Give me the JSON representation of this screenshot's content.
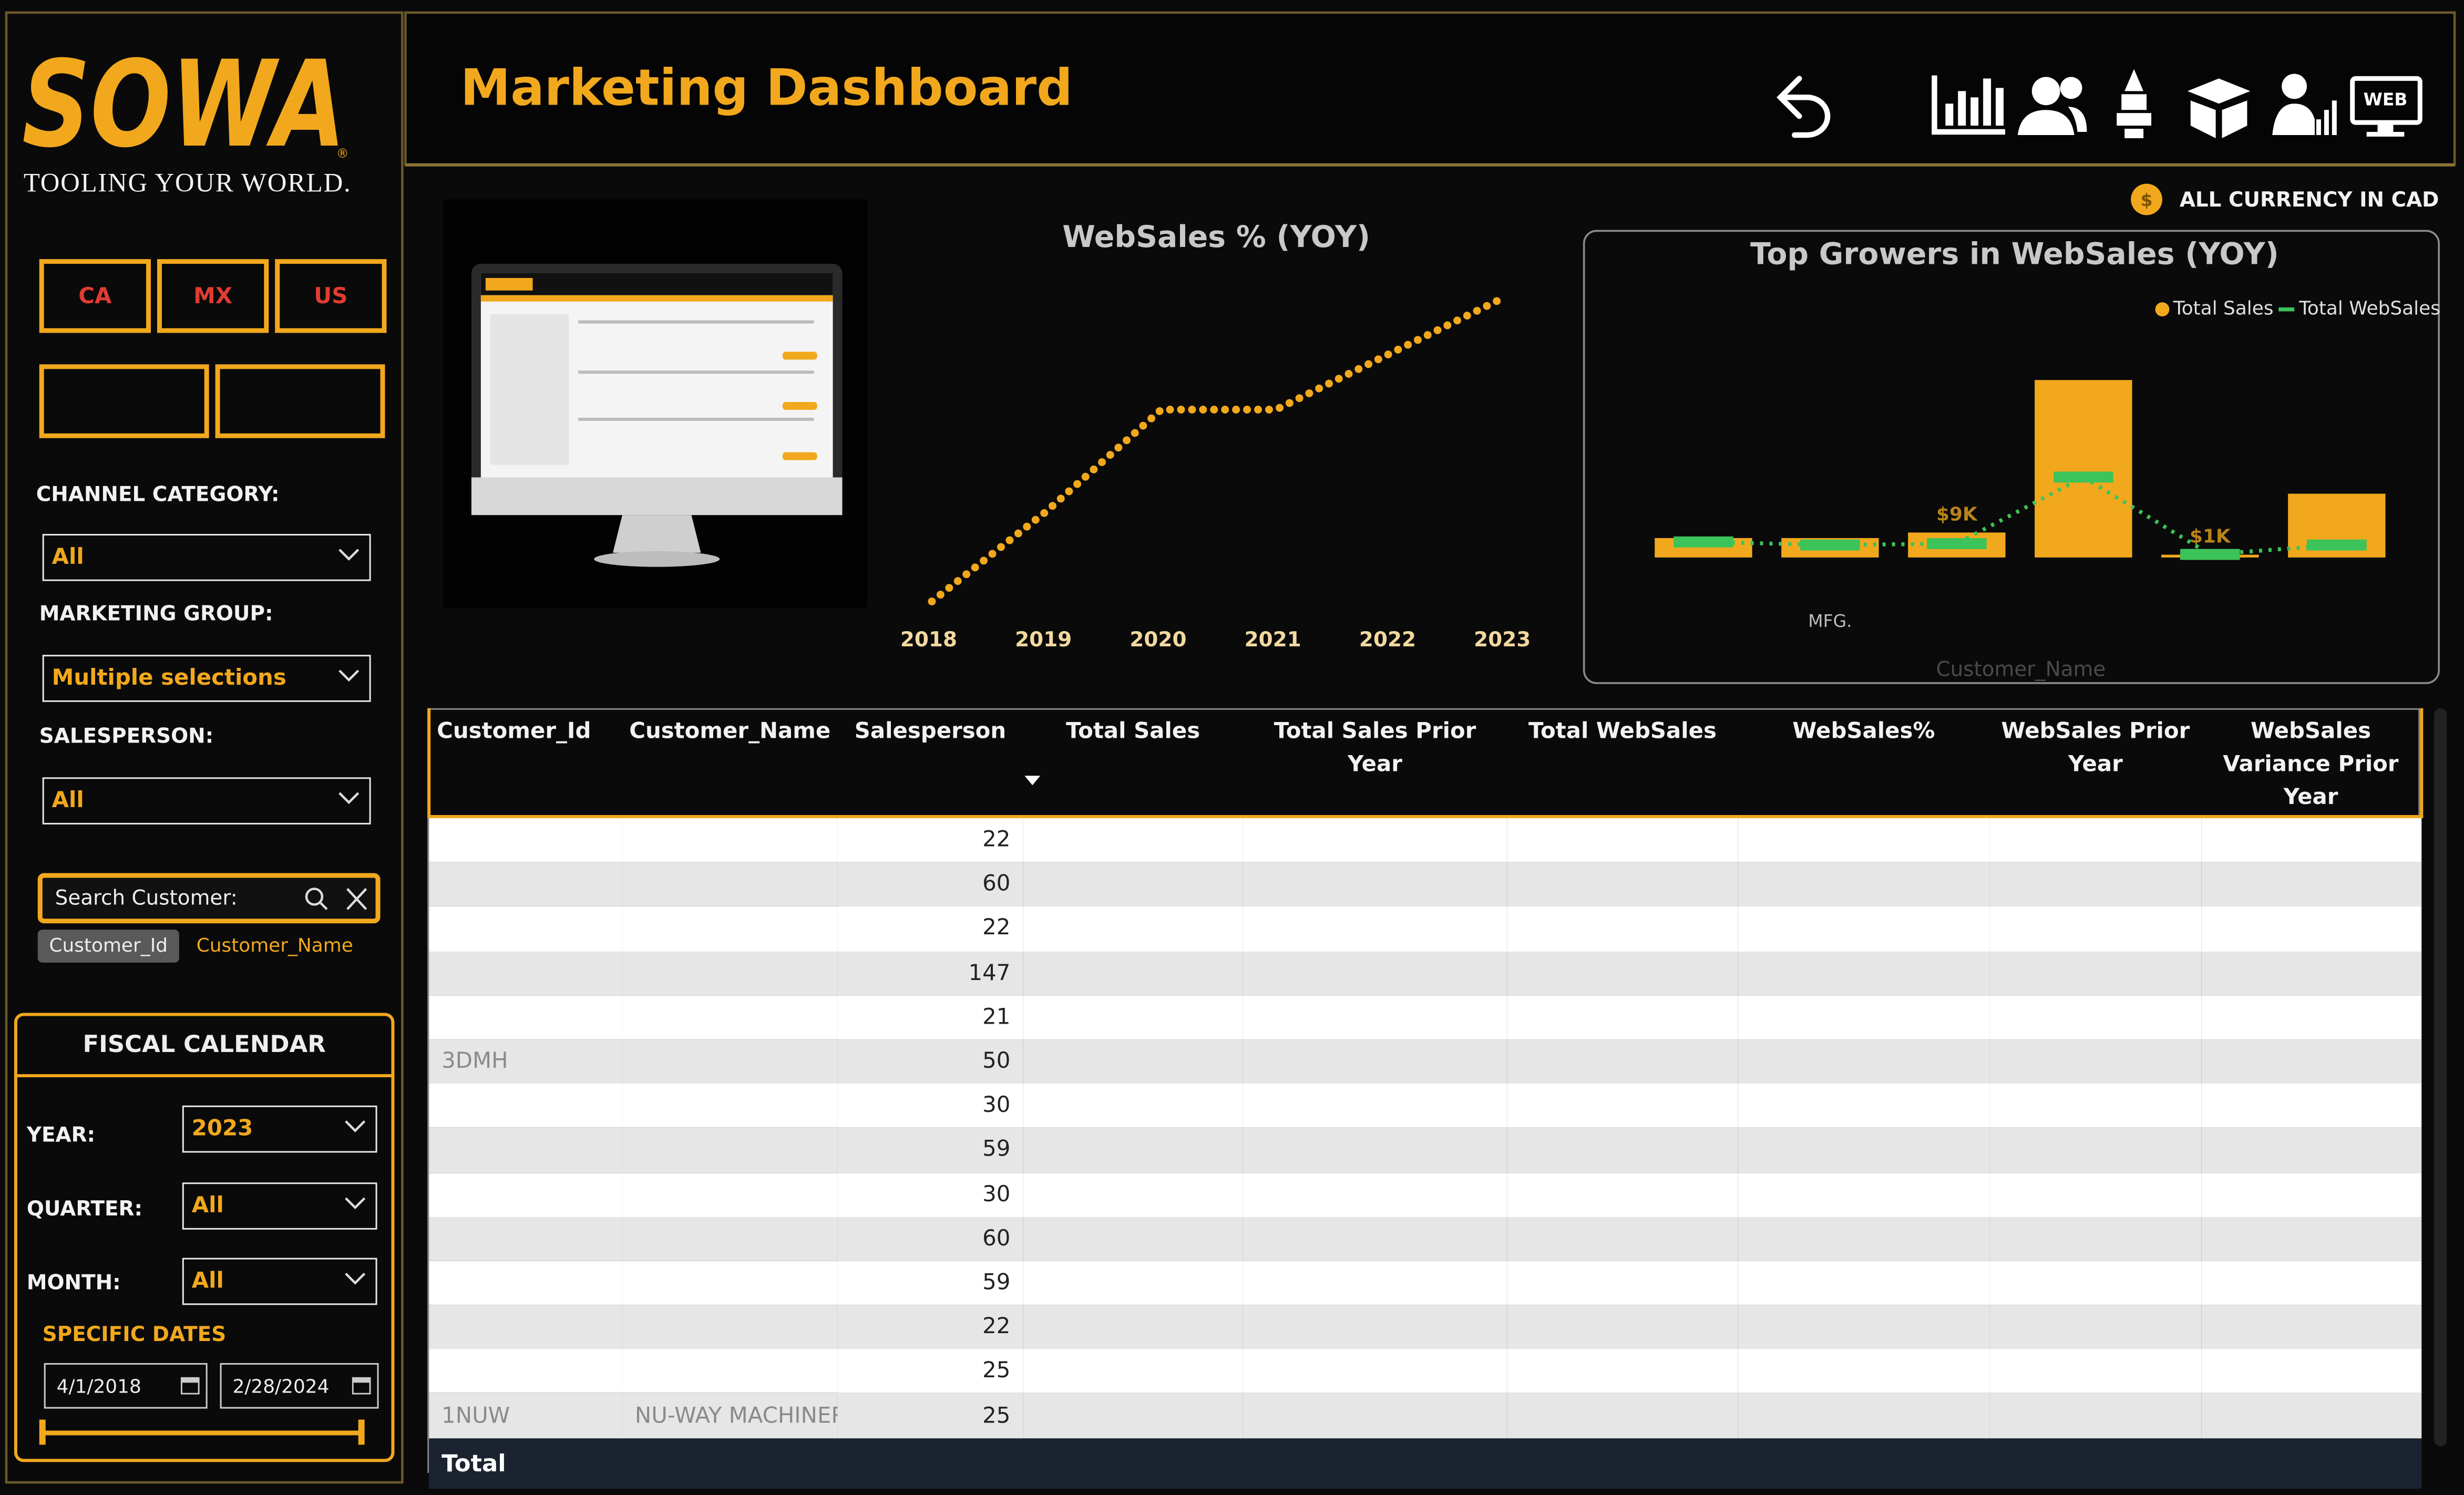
{
  "header": {
    "title": "Marketing Dashboard",
    "currency_note": "ALL CURRENCY IN CAD",
    "web_icon": "WEB"
  },
  "logo": {
    "brand": "SOWA",
    "registered": "®",
    "tagline": "TOOLING YOUR WORLD."
  },
  "filters": {
    "countries": [
      "CA",
      "MX",
      "US"
    ],
    "channel_category": {
      "label": "CHANNEL CATEGORY:",
      "value": "All"
    },
    "marketing_group": {
      "label": "MARKETING GROUP:",
      "value": "Multiple selections"
    },
    "salesperson": {
      "label": "SALESPERSON:",
      "value": "All"
    },
    "search": {
      "placeholder": "Search Customer:",
      "fields": [
        "Customer_Id",
        "Customer_Name"
      ]
    }
  },
  "fiscal_calendar": {
    "title": "FISCAL CALENDAR",
    "year": {
      "label": "YEAR:",
      "value": "2023"
    },
    "quarter": {
      "label": "QUARTER:",
      "value": "All"
    },
    "month": {
      "label": "MONTH:",
      "value": "All"
    },
    "specific_dates": {
      "label": "SPECIFIC DATES",
      "start": "4/1/2018",
      "end": "2/28/2024"
    }
  },
  "chart_data": [
    {
      "type": "line",
      "title": "WebSales % (YOY)",
      "categories": [
        "2018",
        "2019",
        "2020",
        "2021",
        "2022",
        "2023"
      ],
      "values": [
        20,
        28,
        37,
        37,
        42,
        47
      ],
      "color": "#f2a81d"
    },
    {
      "type": "bar",
      "title": "Top Growers in WebSales (YOY)",
      "x_label": "Customer_Name",
      "categories": [
        null,
        "MFG.",
        null,
        null,
        null,
        null
      ],
      "series": [
        {
          "name": "Total Sales",
          "color": "#f2a81d",
          "values": [
            7000,
            7000,
            9000,
            64000,
            1000,
            23000
          ],
          "value_labels": [
            null,
            null,
            "$9K",
            null,
            "$1K",
            null
          ]
        },
        {
          "name": "Total WebSales",
          "color": "#3cc35a",
          "values": [
            5600,
            4500,
            5000,
            29000,
            1100,
            4500
          ]
        }
      ]
    }
  ],
  "table": {
    "columns": [
      "Customer_Id",
      "Customer_Name",
      "Salesperson",
      "Total Sales",
      "Total Sales Prior Year",
      "Total WebSales",
      "WebSales%",
      "WebSales Prior Year",
      "WebSales Variance Prior Year"
    ],
    "rows": [
      {
        "customer_id": null,
        "customer_name": null,
        "salesperson": 22
      },
      {
        "customer_id": null,
        "customer_name": null,
        "salesperson": 60
      },
      {
        "customer_id": null,
        "customer_name": null,
        "salesperson": 22
      },
      {
        "customer_id": null,
        "customer_name": null,
        "salesperson": 147
      },
      {
        "customer_id": null,
        "customer_name": null,
        "salesperson": 21
      },
      {
        "customer_id": "3DMH",
        "customer_name": null,
        "salesperson": 50
      },
      {
        "customer_id": null,
        "customer_name": null,
        "salesperson": 30
      },
      {
        "customer_id": null,
        "customer_name": null,
        "salesperson": 59
      },
      {
        "customer_id": null,
        "customer_name": null,
        "salesperson": 30
      },
      {
        "customer_id": null,
        "customer_name": null,
        "salesperson": 60
      },
      {
        "customer_id": null,
        "customer_name": null,
        "salesperson": 59
      },
      {
        "customer_id": null,
        "customer_name": null,
        "salesperson": 22
      },
      {
        "customer_id": null,
        "customer_name": null,
        "salesperson": 25
      },
      {
        "customer_id": "1NUW",
        "customer_name": "NU-WAY MACHINERY...",
        "salesperson": 25
      }
    ],
    "total_label": "Total"
  }
}
